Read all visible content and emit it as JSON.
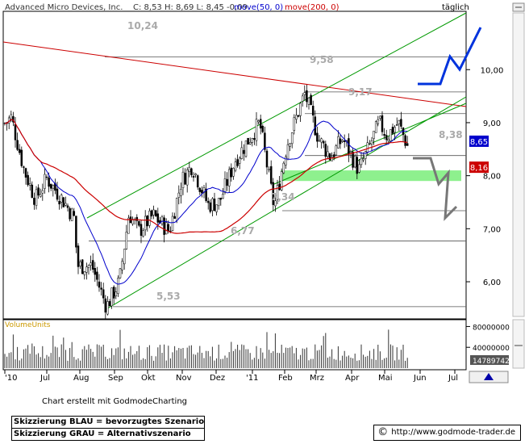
{
  "header": {
    "title": "Advanced Micro Devices, Inc.",
    "quote": "C: 8,53  H: 8,69  L: 8,45  -0,09",
    "ma50_label": "move(50, 0)",
    "ma200_label": "move(200, 0)",
    "interval": "täglich",
    "colors": {
      "ma50": "#0000cc",
      "ma200": "#cc0000"
    }
  },
  "chart_data": [
    {
      "type": "candlestick",
      "title": "Advanced Micro Devices, Inc.",
      "ylim": [
        5.3,
        11.1
      ],
      "y_ticks": [
        6.0,
        7.0,
        8.0,
        9.0,
        10.0
      ],
      "y_tick_labels": [
        "6,00",
        "7,00",
        "8,00",
        "9,00",
        "10,00"
      ],
      "x_tick_labels": [
        "'10",
        "Jul",
        "Aug",
        "Sep",
        "Okt",
        "Nov",
        "Dez",
        "'11",
        "Feb",
        "Mrz",
        "Apr",
        "Mai",
        "Jun",
        "Jul"
      ],
      "last_values": {
        "close": 8.53,
        "high": 8.69,
        "low": 8.45,
        "change": -0.09
      },
      "price_badges": [
        {
          "label": "8,65",
          "value": 8.65,
          "color": "#0000cc"
        },
        {
          "label": "8,16",
          "value": 8.16,
          "color": "#cc0000"
        }
      ],
      "support_resistance_levels": [
        {
          "label": "10,24",
          "value": 10.24
        },
        {
          "label": "9,58",
          "value": 9.58
        },
        {
          "label": "9,17",
          "value": 9.17
        },
        {
          "label": "8,38",
          "value": 8.38
        },
        {
          "label": "7,34",
          "value": 7.34
        },
        {
          "label": "6,77",
          "value": 6.77
        },
        {
          "label": "5,53",
          "value": 5.53
        }
      ],
      "support_zone": {
        "low": 7.9,
        "high": 8.1,
        "color": "#8ef08e"
      },
      "series": [
        {
          "name": "move(50, 0)",
          "color": "#0000cc"
        },
        {
          "name": "move(200, 0)",
          "color": "#cc0000"
        }
      ],
      "grid": false
    },
    {
      "type": "bar",
      "title": "VolumeUnits",
      "y_tick_labels": [
        "80000000",
        "40000000"
      ],
      "y_ticks": [
        80000000,
        40000000
      ],
      "last_value_label": "14789742",
      "ylim": [
        0,
        90000000
      ]
    }
  ],
  "scenario_legend": [
    "Skizzierung BLAU = bevorzugtes Szenario",
    "Skizzierung GRAU = Alternativszenario"
  ],
  "footer": {
    "credit": "Chart erstellt mit GodmodeCharting",
    "url": "http://www.godmode-trader.de"
  }
}
